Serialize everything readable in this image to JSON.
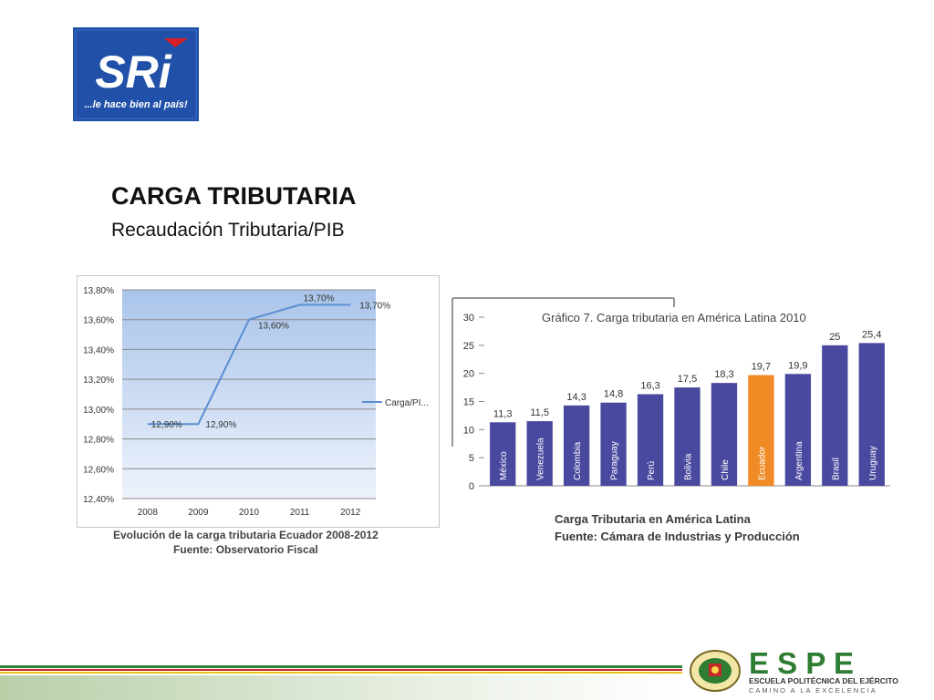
{
  "logo": {
    "text": "SRi",
    "tagline": "...le hace bien al país!"
  },
  "slide": {
    "title": "CARGA TRIBUTARIA",
    "subtitle": "Recaudación Tributaria/PIB"
  },
  "chart_data": [
    {
      "type": "line",
      "x": [
        "2008",
        "2009",
        "2010",
        "2011",
        "2012"
      ],
      "series": [
        {
          "name": "Carga/PI...",
          "values": [
            12.9,
            12.9,
            13.6,
            13.7,
            13.7
          ]
        }
      ],
      "data_labels": [
        "12,90%",
        "12,90%",
        "13,60%",
        "13,70%",
        "13,70%"
      ],
      "y_ticks": [
        "12,40%",
        "12,60%",
        "12,80%",
        "13,00%",
        "13,20%",
        "13,40%",
        "13,60%",
        "13,80%"
      ],
      "ylim": [
        12.4,
        13.8
      ],
      "grid": true,
      "legend": "right",
      "caption": [
        "Evolución de la carga tributaria Ecuador 2008-2012",
        "Fuente: Observatorio Fiscal"
      ]
    },
    {
      "type": "bar",
      "title": "Gráfico 7. Carga tributaria en América Latina 2010",
      "categories": [
        "México",
        "Venezuela",
        "Colombia",
        "Paraguay",
        "Perú",
        "Bolivia",
        "Chile",
        "Ecuador",
        "Argentina",
        "Brasil",
        "Uruguay"
      ],
      "values": [
        11.3,
        11.5,
        14.3,
        14.8,
        16.3,
        17.5,
        18.3,
        19.7,
        19.9,
        25,
        25.4
      ],
      "value_labels": [
        "11,3",
        "11,5",
        "14,3",
        "14,8",
        "16,3",
        "17,5",
        "18,3",
        "19,7",
        "19,9",
        "25",
        "25,4"
      ],
      "y_ticks": [
        "0",
        "5",
        "10",
        "15",
        "20",
        "25",
        "30"
      ],
      "ylim": [
        0,
        30
      ],
      "highlight_index": 7,
      "bar_color": "#4a49a0",
      "highlight_color": "#f08a24",
      "caption": [
        "Carga Tributaria en América Latina",
        "Fuente: Cámara de Industrias y Producción"
      ]
    }
  ],
  "footer": {
    "brand": "E S P E",
    "line1": "ESCUELA POLITÉCNICA DEL EJÉRCITO",
    "line2": "CAMINO A LA EXCELENCIA"
  }
}
